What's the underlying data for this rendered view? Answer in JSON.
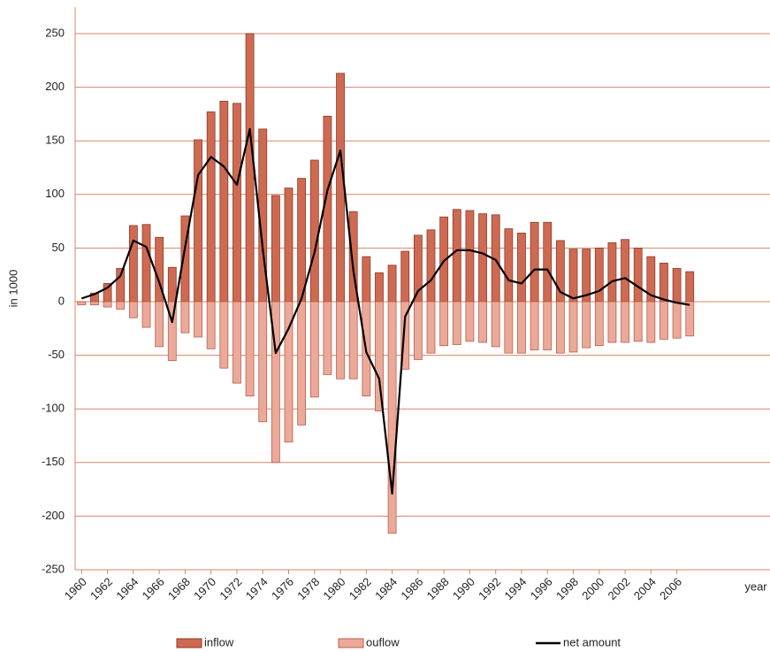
{
  "chart_data": {
    "type": "combo",
    "x_label": "year",
    "y_label": "in 1000",
    "x": [
      1960,
      1961,
      1962,
      1963,
      1964,
      1965,
      1966,
      1967,
      1968,
      1969,
      1970,
      1971,
      1972,
      1973,
      1974,
      1975,
      1976,
      1977,
      1978,
      1979,
      1980,
      1981,
      1982,
      1983,
      1984,
      1985,
      1986,
      1987,
      1988,
      1989,
      1990,
      1991,
      1992,
      1993,
      1994,
      1995,
      1996,
      1997,
      1998,
      1999,
      2000,
      2001,
      2002,
      2003,
      2004,
      2005,
      2006,
      2007
    ],
    "xlim": [
      1959.5,
      2013.2
    ],
    "xticks": [
      1960,
      1962,
      1964,
      1966,
      1968,
      1970,
      1972,
      1974,
      1976,
      1978,
      1980,
      1982,
      1984,
      1986,
      1988,
      1990,
      1992,
      1994,
      1996,
      1998,
      2000,
      2002,
      2004,
      2006
    ],
    "ylim": [
      -250,
      250
    ],
    "yticks": [
      -250,
      -200,
      -150,
      -100,
      -50,
      0,
      50,
      100,
      150,
      200,
      250
    ],
    "grid": true,
    "legend": "bottom",
    "series": [
      {
        "name": "inflow",
        "type": "bar",
        "color": "#cf6a52",
        "values": [
          -2,
          8,
          17,
          31,
          71,
          72,
          60,
          32,
          80,
          151,
          177,
          187,
          185,
          250,
          161,
          99,
          106,
          115,
          132,
          173,
          213,
          84,
          42,
          27,
          34,
          47,
          62,
          67,
          79,
          86,
          85,
          82,
          81,
          68,
          64,
          74,
          74,
          57,
          49,
          49,
          50,
          55,
          58,
          50,
          42,
          36,
          31,
          28
        ]
      },
      {
        "name": "ouflow",
        "type": "bar",
        "color": "#eba999",
        "values": [
          -3,
          -3,
          -5,
          -7,
          -15,
          -24,
          -42,
          -55,
          -29,
          -33,
          -44,
          -62,
          -76,
          -88,
          -112,
          -150,
          -131,
          -115,
          -89,
          -68,
          -72,
          -72,
          -88,
          -102,
          -216,
          -63,
          -54,
          -48,
          -41,
          -40,
          -37,
          -38,
          -42,
          -48,
          -48,
          -45,
          -45,
          -48,
          -47,
          -43,
          -41,
          -38,
          -38,
          -37,
          -38,
          -35,
          -34,
          -32
        ]
      },
      {
        "name": "net amount",
        "type": "line",
        "color": "#000000",
        "values": [
          3,
          7,
          13,
          24,
          57,
          51,
          18,
          -19,
          51,
          118,
          135,
          126,
          109,
          161,
          49,
          -48,
          -25,
          3,
          46,
          104,
          141,
          29,
          -47,
          -72,
          -179,
          -14,
          10,
          20,
          38,
          48,
          48,
          45,
          39,
          20,
          17,
          30,
          30,
          9,
          3,
          6,
          10,
          19,
          22,
          14,
          6,
          2,
          -1,
          -3
        ]
      }
    ]
  }
}
